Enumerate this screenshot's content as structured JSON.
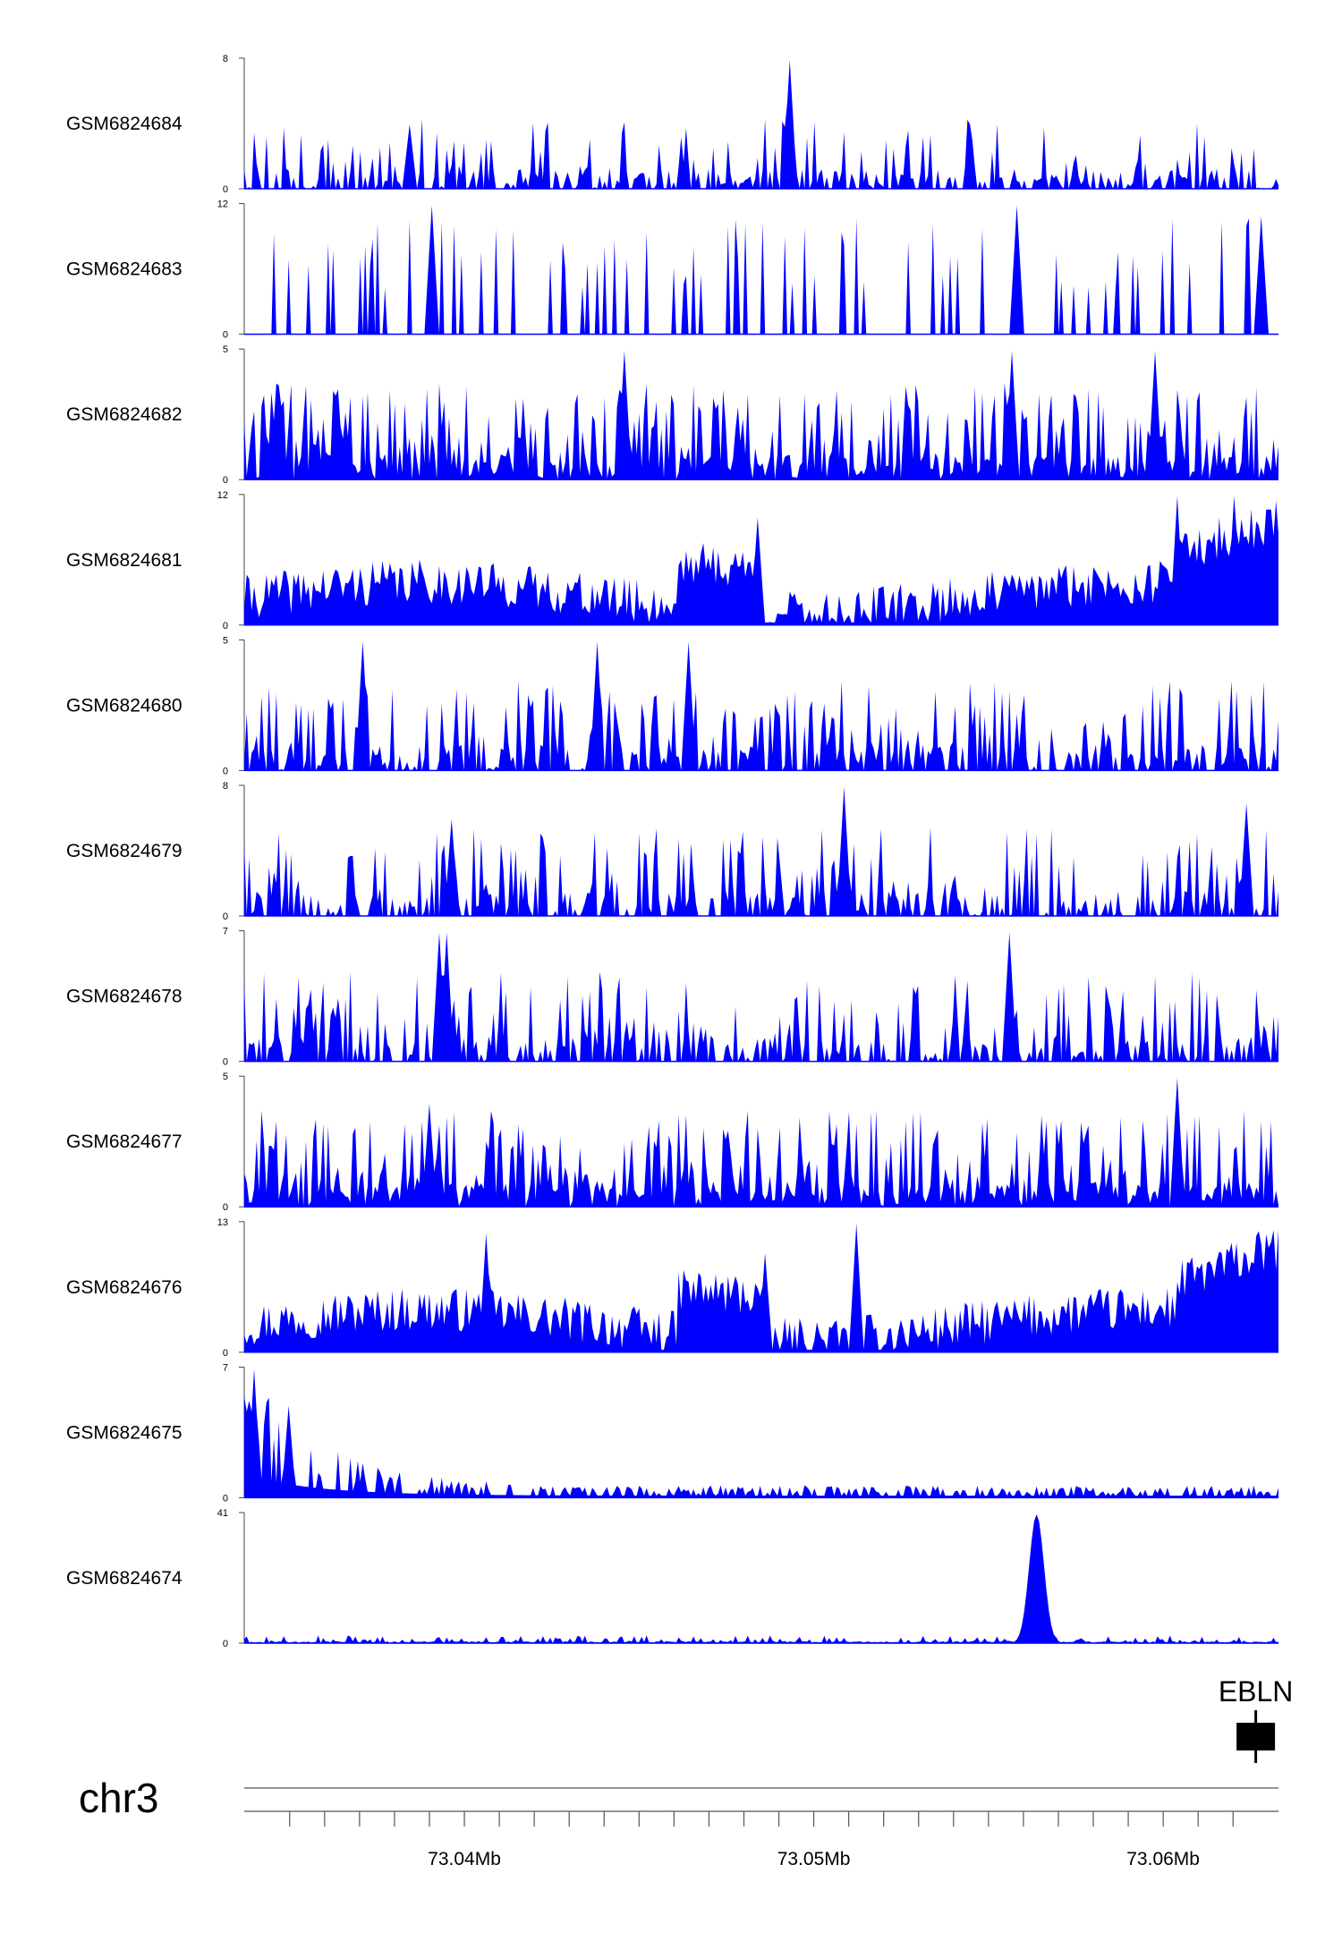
{
  "chart_data": {
    "type": "area",
    "title": "",
    "chromosome": "chr3",
    "region_mb": [
      73.0337,
      73.0633
    ],
    "color": "#0000ff",
    "tracks": [
      {
        "name": "GSM6824684",
        "ymax": 8,
        "ymin": 0,
        "seed": 11,
        "style": "spiky_sparse",
        "peaks": [
          [
            73.0493,
            8
          ],
          [
            73.0384,
            4
          ],
          [
            73.0545,
            4
          ]
        ]
      },
      {
        "name": "GSM6824683",
        "ymax": 12,
        "ymin": 0,
        "seed": 23,
        "style": "very_sparse",
        "peaks": [
          [
            73.0558,
            12
          ],
          [
            73.0391,
            12
          ],
          [
            73.0628,
            11
          ]
        ]
      },
      {
        "name": "GSM6824682",
        "ymax": 5,
        "ymin": 0,
        "seed": 37,
        "style": "spiky_dense",
        "peaks": [
          [
            73.0446,
            5
          ],
          [
            73.0557,
            5
          ],
          [
            73.0598,
            5
          ]
        ]
      },
      {
        "name": "GSM6824681",
        "ymax": 12,
        "ymin": 0,
        "seed": 41,
        "style": "broad",
        "peaks": [
          [
            73.0484,
            10
          ],
          [
            73.0604,
            12
          ],
          [
            73.062,
            12
          ]
        ]
      },
      {
        "name": "GSM6824680",
        "ymax": 5,
        "ymin": 0,
        "seed": 53,
        "style": "spiky_medium",
        "peaks": [
          [
            73.0371,
            5
          ],
          [
            73.0438,
            5
          ],
          [
            73.0464,
            5
          ]
        ]
      },
      {
        "name": "GSM6824679",
        "ymax": 8,
        "ymin": 0,
        "seed": 61,
        "style": "spiky_medium",
        "peaks": [
          [
            73.0509,
            8
          ],
          [
            73.0624,
            7
          ],
          [
            73.0396,
            6
          ]
        ]
      },
      {
        "name": "GSM6824678",
        "ymax": 7,
        "ymin": 0,
        "seed": 73,
        "style": "spiky_medium",
        "peaks": [
          [
            73.0556,
            7
          ],
          [
            73.0393,
            7
          ],
          [
            73.0395,
            7
          ]
        ]
      },
      {
        "name": "GSM6824677",
        "ymax": 5,
        "ymin": 0,
        "seed": 89,
        "style": "spiky_dense",
        "peaks": [
          [
            73.0604,
            5
          ],
          [
            73.039,
            4
          ]
        ]
      },
      {
        "name": "GSM6824676",
        "ymax": 13,
        "ymin": 0,
        "seed": 97,
        "style": "broad",
        "peaks": [
          [
            73.0512,
            13
          ],
          [
            73.0406,
            12
          ],
          [
            73.0486,
            10
          ]
        ]
      },
      {
        "name": "GSM6824675",
        "ymax": 7,
        "ymin": 0,
        "seed": 103,
        "style": "decay_left",
        "peaks": [
          [
            73.034,
            7
          ],
          [
            73.035,
            5
          ]
        ]
      },
      {
        "name": "GSM6824674",
        "ymax": 41,
        "ymin": 0,
        "seed": 113,
        "style": "flat_one_peak",
        "peaks": [
          [
            73.0564,
            41
          ]
        ]
      }
    ],
    "gene": {
      "name": "EBLN",
      "start_mb": 73.0621,
      "end_mb": 73.0632
    },
    "axis": {
      "ticks_mb": [
        73.035,
        73.036,
        73.037,
        73.038,
        73.039,
        73.04,
        73.041,
        73.042,
        73.043,
        73.044,
        73.045,
        73.046,
        73.047,
        73.048,
        73.049,
        73.05,
        73.051,
        73.052,
        73.053,
        73.054,
        73.055,
        73.056,
        73.057,
        73.058,
        73.059,
        73.06,
        73.061,
        73.062
      ],
      "labels": [
        {
          "pos_mb": 73.04,
          "text": "73.04Mb"
        },
        {
          "pos_mb": 73.05,
          "text": "73.05Mb"
        },
        {
          "pos_mb": 73.06,
          "text": "73.06Mb"
        }
      ]
    },
    "ylim_min_label": "0"
  }
}
